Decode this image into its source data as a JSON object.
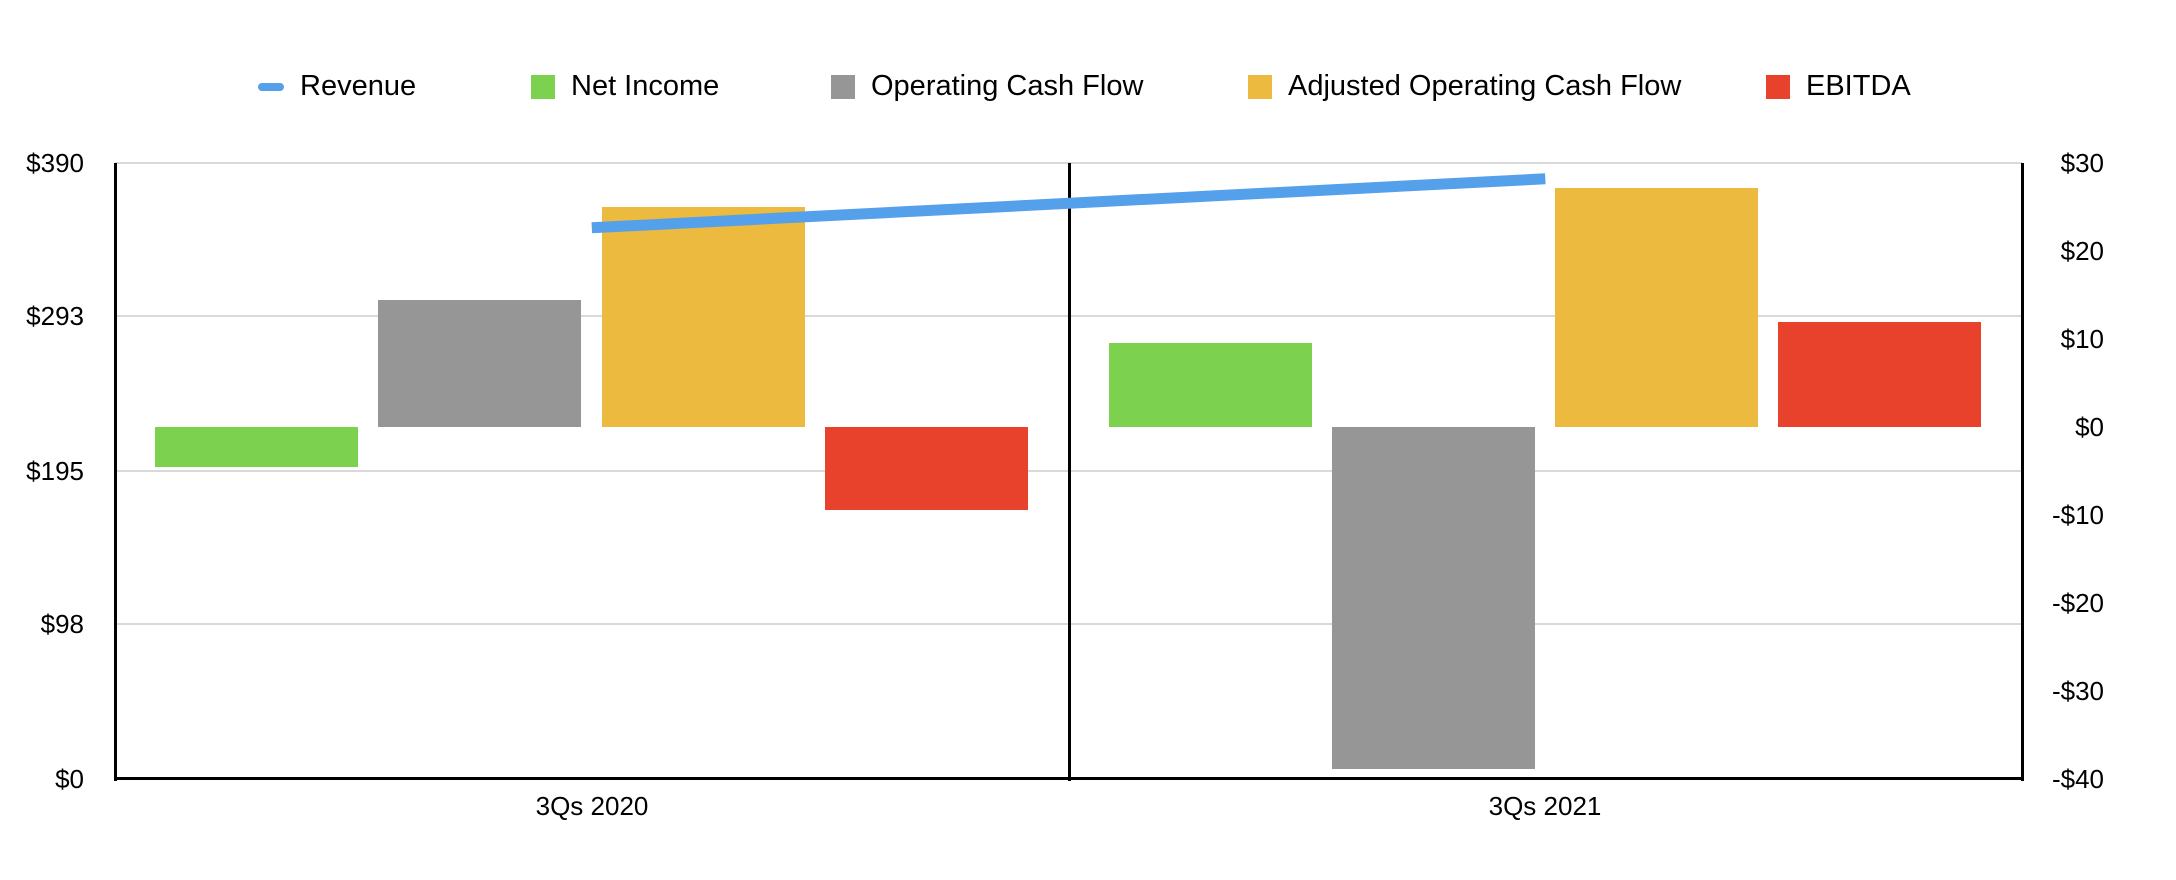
{
  "chart_data": {
    "type": "combo-bar-line",
    "title": "",
    "categories": [
      "3Qs 2020",
      "3Qs 2021"
    ],
    "series": [
      {
        "name": "Revenue",
        "type": "line",
        "axis": "left",
        "color": "#55A0EB",
        "values": [
          349,
          380
        ]
      },
      {
        "name": "Net Income",
        "type": "bar",
        "axis": "right",
        "color": "#7CD14E",
        "values": [
          -4.5,
          9.5
        ]
      },
      {
        "name": "Operating Cash Flow",
        "type": "bar",
        "axis": "right",
        "color": "#969696",
        "values": [
          14.4,
          -38.9
        ]
      },
      {
        "name": "Adjusted Operating Cash Flow",
        "type": "bar",
        "axis": "right",
        "color": "#ECBA3E",
        "values": [
          25.0,
          27.2
        ]
      },
      {
        "name": "EBITDA",
        "type": "bar",
        "axis": "right",
        "color": "#E8412C",
        "values": [
          -9.4,
          11.9
        ]
      }
    ],
    "left_axis": {
      "min": 0,
      "max": 390,
      "tick_values": [
        0,
        98,
        195,
        293,
        390
      ],
      "tick_labels": [
        "$0",
        "$98",
        "$195",
        "$293",
        "$390"
      ]
    },
    "right_axis": {
      "min": -40,
      "max": 30,
      "tick_values": [
        -40,
        -30,
        -20,
        -10,
        0,
        10,
        20,
        30
      ],
      "tick_labels": [
        "-$40",
        "-$30",
        "-$20",
        "-$10",
        "$0",
        "$10",
        "$20",
        "$30"
      ]
    },
    "legend_position": "top",
    "grid": true
  },
  "colors": {
    "background": "#FFFFFF",
    "gridline": "#D9D9D9",
    "axis_line": "#000000",
    "text": "#000000"
  }
}
